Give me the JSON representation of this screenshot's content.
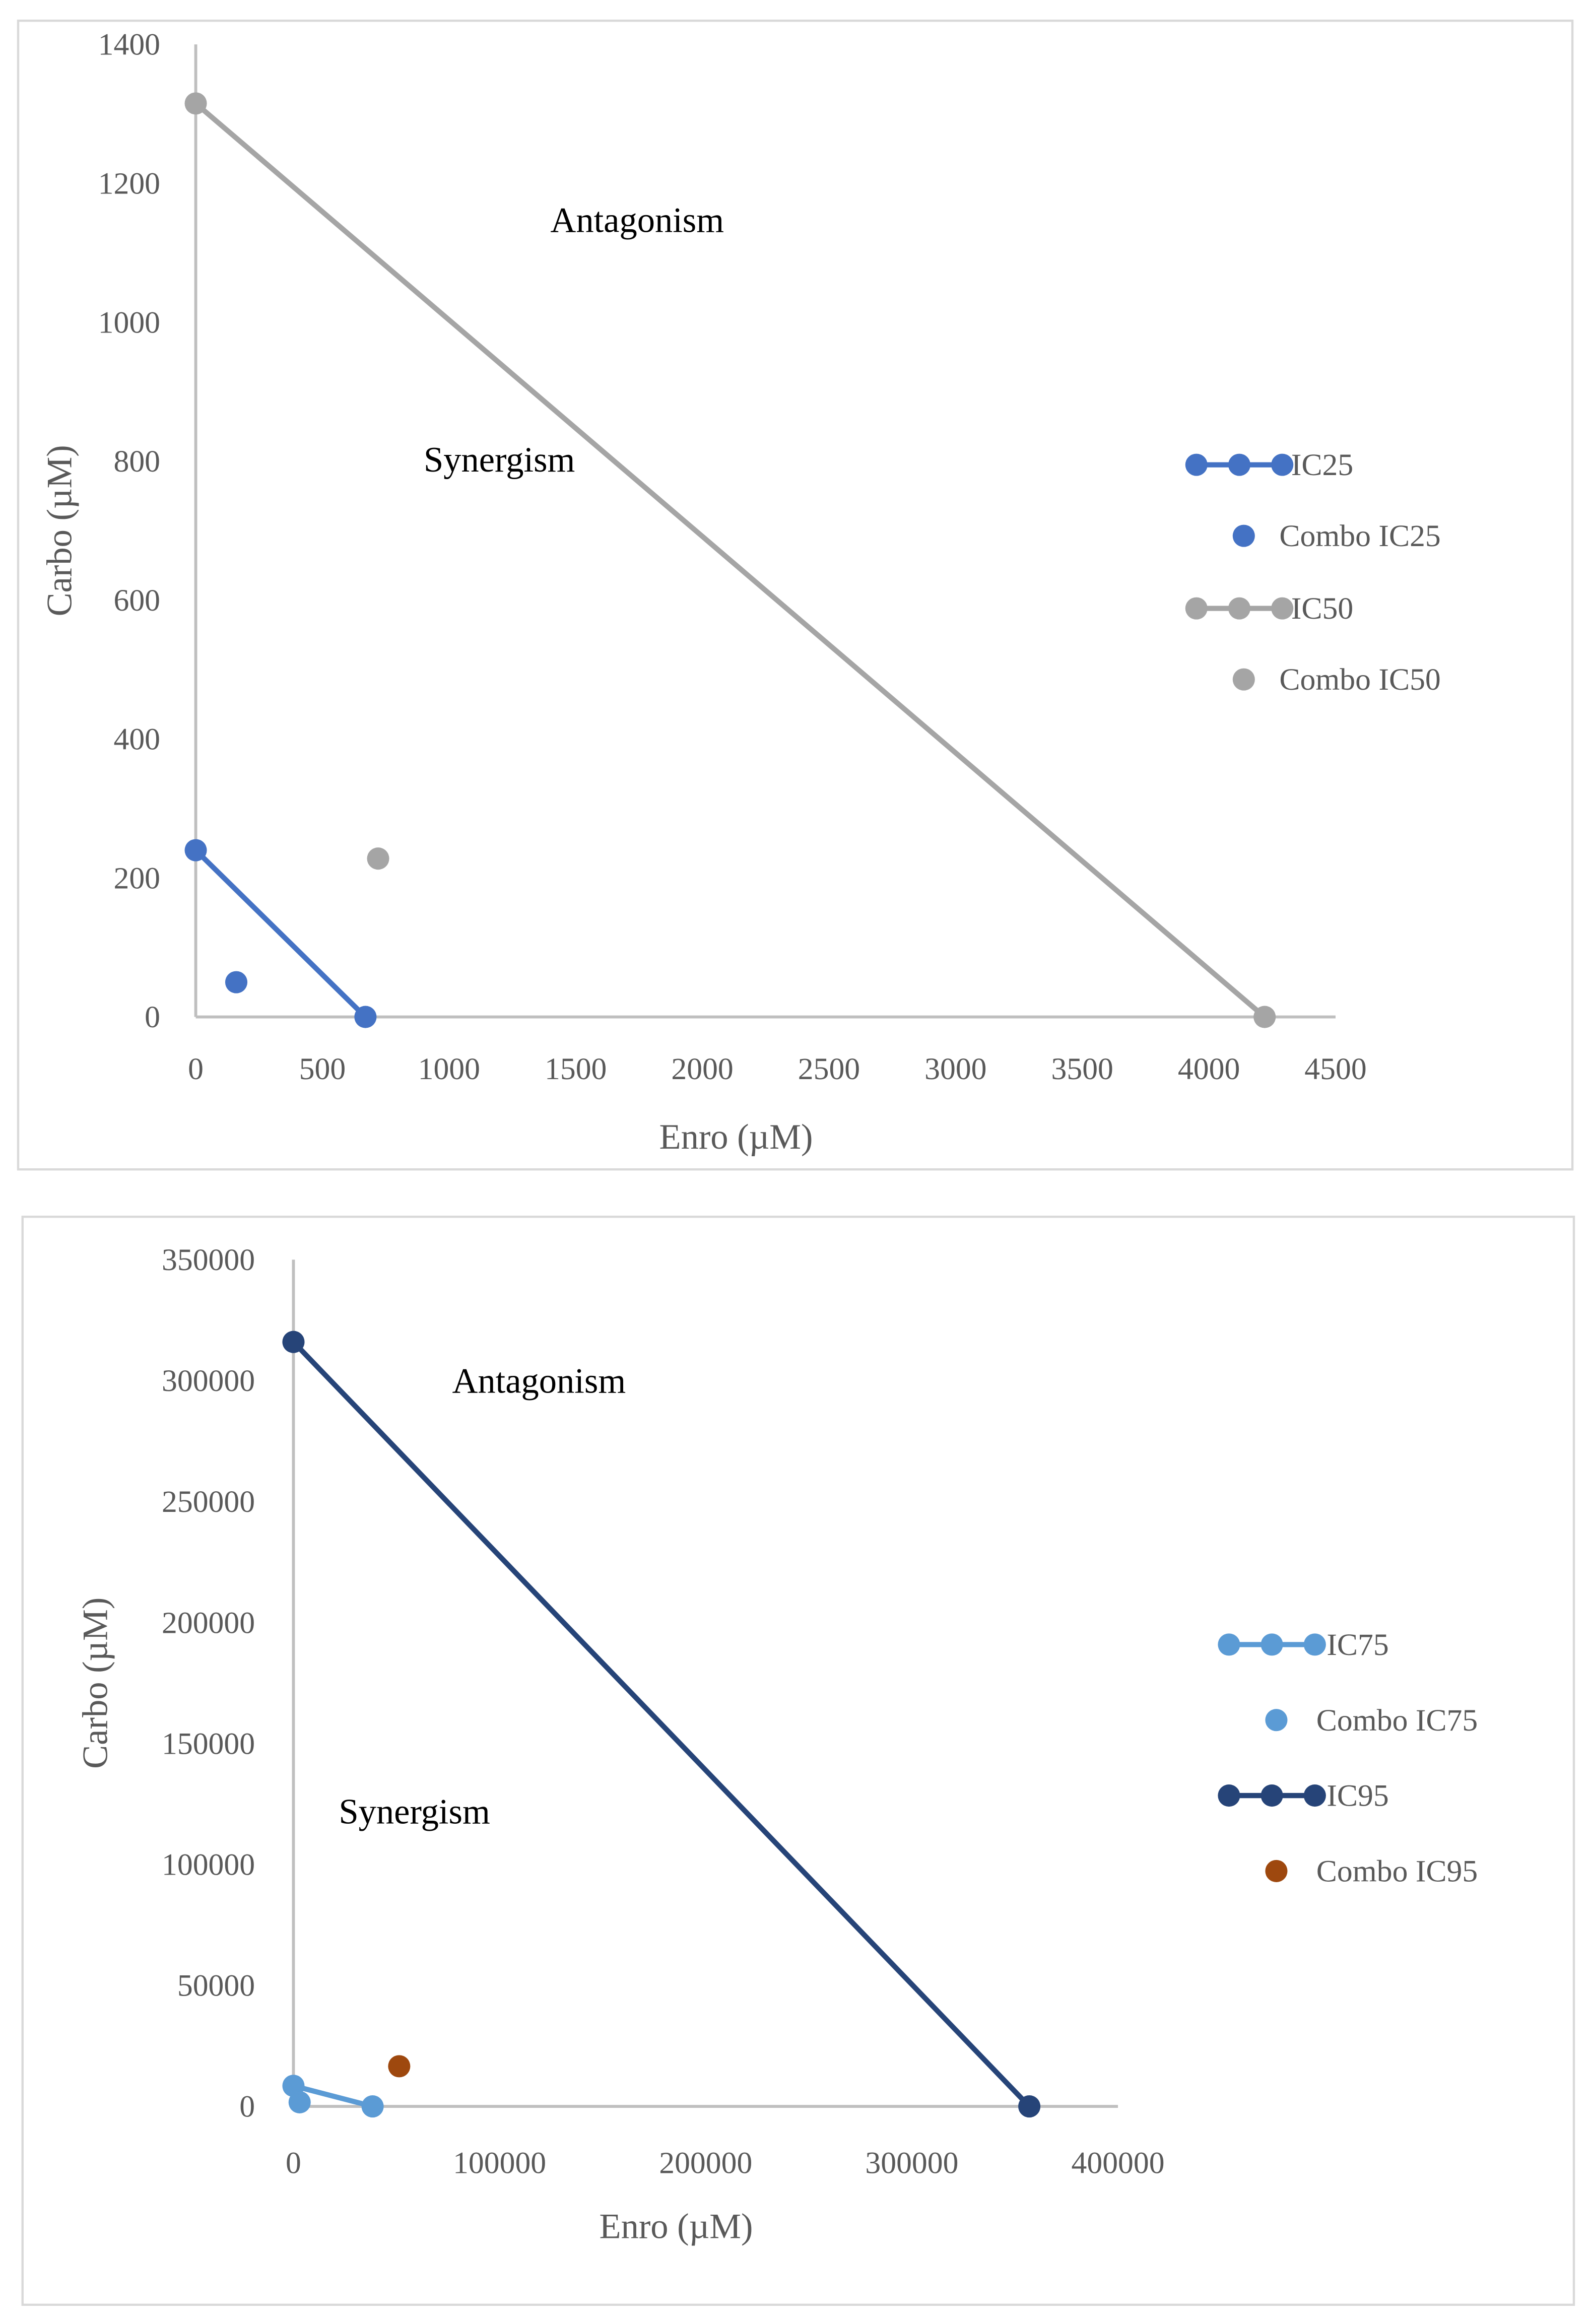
{
  "chart_data": [
    {
      "type": "scatter",
      "title": "",
      "xlabel": "Enro (µM)",
      "ylabel": "Carbo (µM)",
      "xlim": [
        0,
        4500
      ],
      "ylim": [
        0,
        1400
      ],
      "xticks": [
        "0",
        "500",
        "1000",
        "1500",
        "2000",
        "2500",
        "3000",
        "3500",
        "4000",
        "4500"
      ],
      "xtick_values": [
        0,
        500,
        1000,
        1500,
        2000,
        2500,
        3000,
        3500,
        4000,
        4500
      ],
      "yticks": [
        "0",
        "200",
        "400",
        "600",
        "800",
        "1000",
        "1200",
        "1400"
      ],
      "ytick_values": [
        0,
        200,
        400,
        600,
        800,
        1000,
        1200,
        1400
      ],
      "grid": false,
      "legend_position": "right",
      "annotations": [
        {
          "text": "Antagonism",
          "x": 1400,
          "y": 1130
        },
        {
          "text": "Synergism",
          "x": 900,
          "y": 785
        }
      ],
      "series": [
        {
          "name": "IC25",
          "kind": "line",
          "color": "#4472C4",
          "points": [
            [
              0,
              240
            ],
            [
              670,
              0
            ]
          ]
        },
        {
          "name": "Combo IC25",
          "kind": "point",
          "color": "#4472C4",
          "points": [
            [
              160,
              50
            ]
          ]
        },
        {
          "name": "IC50",
          "kind": "line",
          "color": "#A5A5A5",
          "points": [
            [
              0,
              1315
            ],
            [
              4220,
              0
            ]
          ]
        },
        {
          "name": "Combo IC50",
          "kind": "point",
          "color": "#A5A5A5",
          "points": [
            [
              720,
              228
            ]
          ]
        }
      ]
    },
    {
      "type": "scatter",
      "title": "",
      "xlabel": "Enro (µM)",
      "ylabel": "Carbo (µM)",
      "xlim": [
        0,
        400000
      ],
      "ylim": [
        0,
        350000
      ],
      "xticks": [
        "0",
        "100000",
        "200000",
        "300000",
        "400000"
      ],
      "xtick_values": [
        0,
        100000,
        200000,
        300000,
        400000
      ],
      "yticks": [
        "0",
        "50000",
        "100000",
        "150000",
        "200000",
        "250000",
        "300000",
        "350000"
      ],
      "ytick_values": [
        0,
        50000,
        100000,
        150000,
        200000,
        250000,
        300000,
        350000
      ],
      "grid": false,
      "legend_position": "right",
      "annotations": [
        {
          "text": "Antagonism",
          "x": 77000,
          "y": 295000
        },
        {
          "text": "Synergism",
          "x": 22000,
          "y": 117000
        }
      ],
      "series": [
        {
          "name": "IC75",
          "kind": "line",
          "color": "#5B9BD5",
          "points": [
            [
              0,
              8500
            ],
            [
              38400,
              0
            ]
          ]
        },
        {
          "name": "Combo IC75",
          "kind": "point",
          "color": "#5B9BD5",
          "points": [
            [
              3000,
              1700
            ]
          ]
        },
        {
          "name": "IC95",
          "kind": "line",
          "color": "#264478",
          "points": [
            [
              0,
              316000
            ],
            [
              357000,
              0
            ]
          ]
        },
        {
          "name": "Combo IC95",
          "kind": "point",
          "color": "#9E480E",
          "points": [
            [
              51300,
              16600
            ]
          ]
        }
      ]
    }
  ]
}
